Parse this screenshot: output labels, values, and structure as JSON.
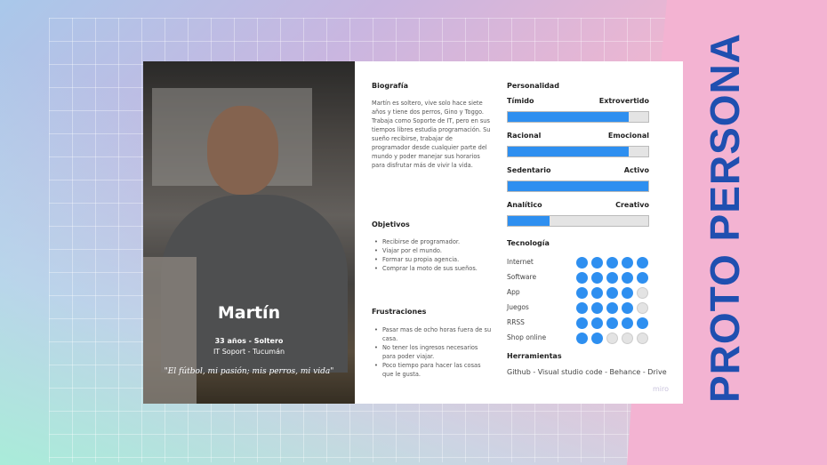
{
  "title": "PROTO PERSONA",
  "persona": {
    "name": "Martín",
    "line1": "33 años - Soltero",
    "line2": "IT Soport - Tucumán",
    "quote": "\"El fútbol, mi pasión; mis perros, mi vida\""
  },
  "bio": {
    "heading": "Biografía",
    "text": "Martín es soltero, vive solo hace siete años y tiene dos perros, Gino y Toggo. Trabaja como Soporte de IT, pero en sus tiempos libres estudia programación. Su sueño recibirse, trabajar de programador desde cualquier parte del mundo y poder manejar sus horarios para disfrutar más de vivir la vida."
  },
  "objetivos": {
    "heading": "Objetivos",
    "items": [
      "Recibirse de programador.",
      "Viajar por el mundo.",
      "Formar su propia agencia.",
      "Comprar la moto de sus sueños."
    ]
  },
  "frustraciones": {
    "heading": "Frustraciones",
    "items": [
      "Pasar mas de ocho horas fuera de su casa.",
      "No tener los ingresos necesarios para poder viajar.",
      "Poco tiempo para hacer las cosas que le gusta."
    ]
  },
  "personalidad": {
    "heading": "Personalidad",
    "traits": [
      {
        "left": "Tímido",
        "right": "Extrovertido",
        "value": 0.86
      },
      {
        "left": "Racional",
        "right": "Emocional",
        "value": 0.86
      },
      {
        "left": "Sedentario",
        "right": "Activo",
        "value": 1.0
      },
      {
        "left": "Analítico",
        "right": "Creativo",
        "value": 0.3
      }
    ]
  },
  "tecnologia": {
    "heading": "Tecnología",
    "max": 5,
    "items": [
      {
        "label": "Internet",
        "level": 5
      },
      {
        "label": "Software",
        "level": 5
      },
      {
        "label": "App",
        "level": 4
      },
      {
        "label": "Juegos",
        "level": 4
      },
      {
        "label": "RRSS",
        "level": 5
      },
      {
        "label": "Shop online",
        "level": 2
      }
    ]
  },
  "herramientas": {
    "heading": "Herramientas",
    "text": "Github - Visual studio code - Behance - Drive"
  },
  "brand": "miro",
  "colors": {
    "accent": "#2e8ff0",
    "title": "#1f4fb0"
  }
}
